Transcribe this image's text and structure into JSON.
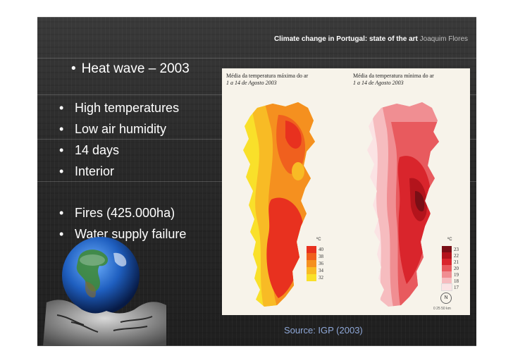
{
  "header": {
    "bold_text": "Climate change in Portugal: state of the art",
    "author": "Joaquim Flores"
  },
  "title": {
    "bullet": "•",
    "text": "Heat wave – 2003"
  },
  "bullets_group1": [
    {
      "bullet": "•",
      "text": "High temperatures"
    },
    {
      "bullet": "•",
      "text": "Low air humidity"
    },
    {
      "bullet": "•",
      "text": "14 days"
    },
    {
      "bullet": "•",
      "text": "Interior"
    }
  ],
  "bullets_group2": [
    {
      "bullet": "•",
      "text": "Fires (425.000ha)"
    },
    {
      "bullet": "•",
      "text": "Water supply failure"
    }
  ],
  "map_left": {
    "title": "Média da temperatura máxima do ar",
    "subtitle": "1 a 14 de Agosto 2003",
    "unit": "ºC",
    "legend": [
      "40",
      "38",
      "36",
      "34",
      "32"
    ],
    "colors": [
      "#e8311f",
      "#f0601e",
      "#f5901f",
      "#f8bb25",
      "#f9e02a"
    ]
  },
  "map_right": {
    "title": "Média da temperatura mínima do ar",
    "subtitle": "1 a 14 de Agosto 2003",
    "unit": "ºC",
    "legend": [
      "23",
      "22",
      "21",
      "20",
      "19",
      "18",
      "17"
    ],
    "colors": [
      "#7a0f16",
      "#b3141c",
      "#d9252c",
      "#e85a5e",
      "#f08e92",
      "#f6bcbf",
      "#fbe3e4"
    ]
  },
  "source": "Source: IGP (2003)",
  "compass": "N",
  "scale_text": "0 25 50 km"
}
